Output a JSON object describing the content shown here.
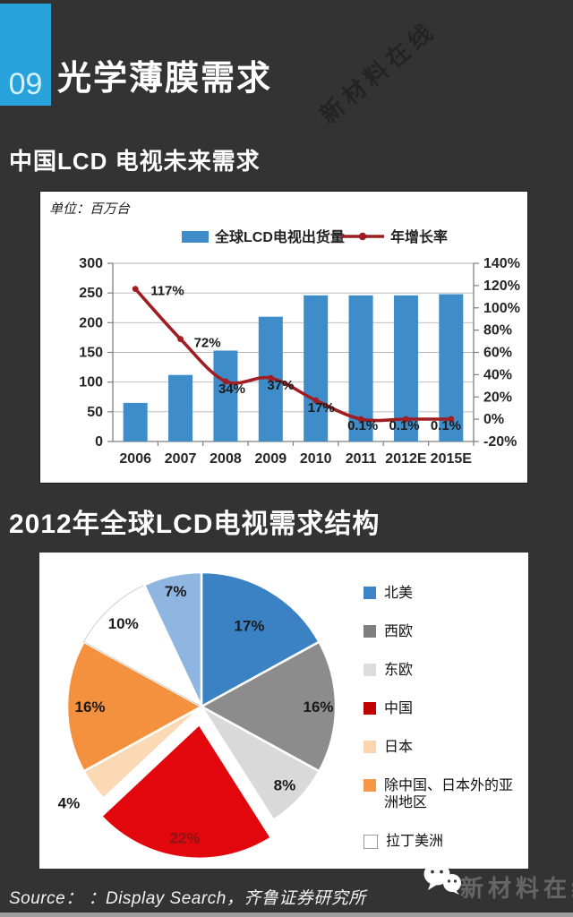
{
  "colors": {
    "background": "#333333",
    "accent_blue": "#27a2da",
    "bar_blue": "#3e8dc8",
    "line_red": "#a01d21",
    "panel_bg": "#ffffff"
  },
  "header": {
    "number": "09",
    "title": "光学薄膜需求"
  },
  "watermark": "新材料在线",
  "sections": {
    "s1": "中国LCD 电视未来需求",
    "s2": "2012年全球LCD电视需求结构"
  },
  "footer": {
    "source": "Source： ：Display Search，齐鲁证券研究所",
    "brand": "新材料在线"
  },
  "chart_data": [
    {
      "type": "bar",
      "unit_label": "单位：百万台",
      "categories": [
        "2006",
        "2007",
        "2008",
        "2009",
        "2010",
        "2011",
        "2012E",
        "2015E"
      ],
      "series": [
        {
          "name": "全球LCD电视出货量",
          "kind": "bar",
          "axis": "left",
          "color": "#3e8dc8",
          "values": [
            65,
            112,
            153,
            210,
            246,
            246,
            246,
            248
          ]
        },
        {
          "name": "年增长率",
          "kind": "line",
          "axis": "right",
          "color": "#a01d21",
          "values": [
            117,
            72,
            34,
            37,
            17,
            0.1,
            0.1,
            0.1
          ],
          "labels": [
            "117%",
            "72%",
            "34%",
            "37%",
            "17%",
            "0.1%",
            "0.1%",
            "0.1%"
          ]
        }
      ],
      "left_axis": {
        "min": 0,
        "max": 300,
        "step": 50
      },
      "right_axis": {
        "min": -20,
        "max": 140,
        "step": 20,
        "suffix": "%"
      },
      "grid": true,
      "legend_position": "top"
    },
    {
      "type": "pie",
      "slices": [
        {
          "label": "北美",
          "value": 17,
          "display": "17%",
          "color": "#3b82c4",
          "legend_color": "#3d85c8",
          "in_legend": true
        },
        {
          "label": "西欧",
          "value": 16,
          "display": "16%",
          "color": "#8c8c8c",
          "legend_color": "#7f7f7f",
          "in_legend": true
        },
        {
          "label": "东欧",
          "value": 8,
          "display": "8%",
          "color": "#d9d9d9",
          "legend_color": "#dcdcdc",
          "in_legend": true
        },
        {
          "label": "中国",
          "value": 22,
          "display": "22%",
          "color": "#e1070c",
          "legend_color": "#c00000",
          "in_legend": true,
          "exploded": true
        },
        {
          "label": "日本",
          "value": 4,
          "display": "4%",
          "color": "#fcd9b5",
          "legend_color": "#fbd5ae",
          "in_legend": true
        },
        {
          "label": "除中国、日本外的亚洲地区",
          "value": 16,
          "display": "16%",
          "color": "#f4913e",
          "legend_color": "#f79646",
          "in_legend": true
        },
        {
          "label": "拉丁美洲",
          "value": 10,
          "display": "10%",
          "color": "#ffffff",
          "legend_color": "#ffffff",
          "in_legend": true
        },
        {
          "label": "",
          "value": 7,
          "display": "7%",
          "color": "#8fb6e0",
          "legend_color": "#8fb6e0",
          "in_legend": false
        }
      ],
      "legend_position": "right"
    }
  ]
}
